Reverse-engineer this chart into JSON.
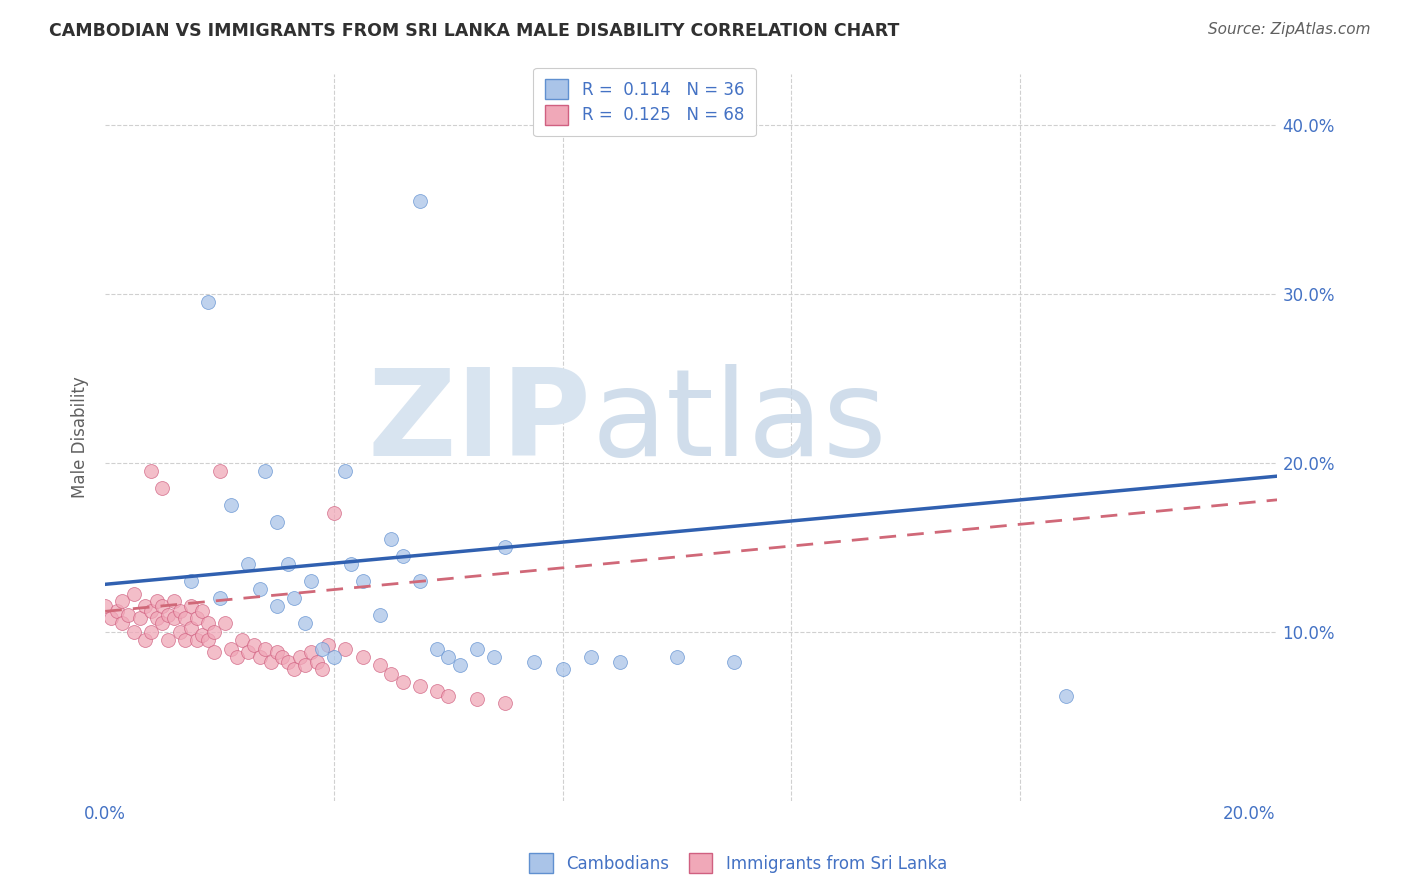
{
  "title": "CAMBODIAN VS IMMIGRANTS FROM SRI LANKA MALE DISABILITY CORRELATION CHART",
  "source": "Source: ZipAtlas.com",
  "ylabel": "Male Disability",
  "watermark_zip": "ZIP",
  "watermark_atlas": "atlas",
  "xlim": [
    0.0,
    0.205
  ],
  "ylim": [
    0.0,
    0.43
  ],
  "color_cambodian_fill": "#aac4e8",
  "color_cambodian_edge": "#6090d0",
  "color_srilanka_fill": "#f0a8b8",
  "color_srilanka_edge": "#d06080",
  "color_blue_text": "#4472C4",
  "color_trend_cambodian": "#3060b0",
  "color_trend_srilanka": "#d06878",
  "background_color": "#ffffff",
  "grid_color": "#d0d0d0",
  "title_color": "#303030",
  "ylabel_color": "#606060",
  "source_color": "#606060",
  "cambodian_x": [
    0.015,
    0.02,
    0.022,
    0.025,
    0.027,
    0.028,
    0.03,
    0.03,
    0.032,
    0.033,
    0.035,
    0.036,
    0.038,
    0.04,
    0.042,
    0.043,
    0.045,
    0.048,
    0.05,
    0.052,
    0.055,
    0.058,
    0.06,
    0.062,
    0.065,
    0.068,
    0.07,
    0.075,
    0.08,
    0.085,
    0.09,
    0.1,
    0.11,
    0.168,
    0.055,
    0.018
  ],
  "cambodian_y": [
    0.13,
    0.12,
    0.175,
    0.14,
    0.125,
    0.195,
    0.115,
    0.165,
    0.14,
    0.12,
    0.105,
    0.13,
    0.09,
    0.085,
    0.195,
    0.14,
    0.13,
    0.11,
    0.155,
    0.145,
    0.13,
    0.09,
    0.085,
    0.08,
    0.09,
    0.085,
    0.15,
    0.082,
    0.078,
    0.085,
    0.082,
    0.085,
    0.082,
    0.062,
    0.355,
    0.295
  ],
  "srilanka_x": [
    0.0,
    0.001,
    0.002,
    0.003,
    0.003,
    0.004,
    0.005,
    0.005,
    0.006,
    0.007,
    0.007,
    0.008,
    0.008,
    0.009,
    0.009,
    0.01,
    0.01,
    0.011,
    0.011,
    0.012,
    0.012,
    0.013,
    0.013,
    0.014,
    0.014,
    0.015,
    0.015,
    0.016,
    0.016,
    0.017,
    0.017,
    0.018,
    0.018,
    0.019,
    0.019,
    0.02,
    0.021,
    0.022,
    0.023,
    0.024,
    0.025,
    0.026,
    0.027,
    0.028,
    0.029,
    0.03,
    0.031,
    0.032,
    0.033,
    0.034,
    0.035,
    0.036,
    0.037,
    0.038,
    0.039,
    0.04,
    0.042,
    0.045,
    0.048,
    0.05,
    0.052,
    0.055,
    0.058,
    0.06,
    0.065,
    0.07,
    0.01,
    0.008
  ],
  "srilanka_y": [
    0.115,
    0.108,
    0.112,
    0.105,
    0.118,
    0.11,
    0.1,
    0.122,
    0.108,
    0.115,
    0.095,
    0.112,
    0.1,
    0.108,
    0.118,
    0.105,
    0.115,
    0.11,
    0.095,
    0.108,
    0.118,
    0.1,
    0.112,
    0.095,
    0.108,
    0.102,
    0.115,
    0.095,
    0.108,
    0.112,
    0.098,
    0.105,
    0.095,
    0.088,
    0.1,
    0.195,
    0.105,
    0.09,
    0.085,
    0.095,
    0.088,
    0.092,
    0.085,
    0.09,
    0.082,
    0.088,
    0.085,
    0.082,
    0.078,
    0.085,
    0.08,
    0.088,
    0.082,
    0.078,
    0.092,
    0.17,
    0.09,
    0.085,
    0.08,
    0.075,
    0.07,
    0.068,
    0.065,
    0.062,
    0.06,
    0.058,
    0.185,
    0.195
  ],
  "trend_cambodian_x0": 0.0,
  "trend_cambodian_y0": 0.128,
  "trend_cambodian_x1": 0.205,
  "trend_cambodian_y1": 0.192,
  "trend_srilanka_x0": 0.0,
  "trend_srilanka_y0": 0.112,
  "trend_srilanka_x1": 0.205,
  "trend_srilanka_y1": 0.178,
  "legend_line1": "R =  0.114   N = 36",
  "legend_line2": "R =  0.125   N = 68"
}
